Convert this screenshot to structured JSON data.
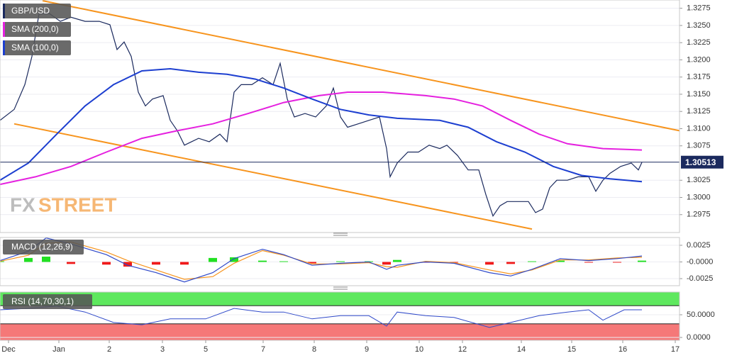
{
  "watermark": [
    "FX",
    "STREET"
  ],
  "chart_data": [
    {
      "type": "line",
      "xlim": [
        0,
        239.5
      ],
      "ylim": [
        1.2949,
        1.3287
      ],
      "yticks": [
        1.3275,
        {
          "value": 1.325,
          "label": "1.3250"
        },
        1.3225,
        {
          "value": 1.32,
          "label": "1.3200"
        },
        1.3175,
        {
          "value": 1.315,
          "label": "1.3150"
        },
        1.3125,
        {
          "value": 1.31,
          "label": "1.3100"
        },
        1.3075,
        1.3025,
        {
          "value": 1.3,
          "label": "1.3000"
        },
        1.2975
      ],
      "last_price": 1.30513,
      "series": [
        {
          "name": "GBP/USD",
          "color": "#1b2a5e",
          "x": [
            0,
            5,
            8.75,
            11.25,
            13.75,
            17.5,
            21.25,
            25,
            30,
            35,
            38.75,
            41.25,
            43.75,
            46.25,
            48.75,
            51.25,
            53.75,
            57.5,
            60,
            62.5,
            65,
            67.5,
            70,
            73.75,
            77.5,
            80,
            82.5,
            85,
            88.75,
            92.5,
            96.25,
            98.75,
            101.25,
            103.75,
            107.5,
            111.25,
            115,
            117.5,
            120,
            122.5,
            126.25,
            130,
            133.75,
            136.25,
            137.5,
            140,
            143.75,
            147.5,
            151.25,
            155,
            157.5,
            161.25,
            165,
            168.75,
            171.25,
            173.75,
            176.25,
            178.75,
            182.5,
            186.25,
            188.75,
            191.25,
            193.75,
            196.25,
            200,
            203.75,
            207.5,
            210,
            212.5,
            215,
            218.75,
            222.5,
            225,
            226.25
          ],
          "values": [
            1.3112,
            1.3128,
            1.3164,
            1.3205,
            1.3267,
            1.3267,
            1.3256,
            1.3262,
            1.3256,
            1.3256,
            1.3251,
            1.3215,
            1.3226,
            1.3205,
            1.3153,
            1.3133,
            1.3143,
            1.3148,
            1.3112,
            1.3097,
            1.3076,
            1.3081,
            1.3086,
            1.3081,
            1.3092,
            1.3081,
            1.3153,
            1.3164,
            1.3164,
            1.3174,
            1.3164,
            1.3195,
            1.3143,
            1.3117,
            1.3122,
            1.3117,
            1.3133,
            1.3159,
            1.3117,
            1.3102,
            1.3107,
            1.3112,
            1.3117,
            1.3071,
            1.303,
            1.305,
            1.3066,
            1.3066,
            1.3076,
            1.3071,
            1.3076,
            1.3061,
            1.304,
            1.304,
            1.3004,
            1.2973,
            1.2988,
            1.2994,
            1.2994,
            1.2994,
            1.2978,
            1.2983,
            1.3014,
            1.3025,
            1.3025,
            1.303,
            1.303,
            1.3009,
            1.3025,
            1.3035,
            1.3045,
            1.305,
            1.304,
            1.3051
          ]
        },
        {
          "name": "SMA (200,0)",
          "color": "#e520df",
          "x": [
            0,
            12.5,
            25,
            37.5,
            50,
            62.5,
            75,
            87.5,
            100,
            112.5,
            122.5,
            135,
            150,
            160,
            170,
            180,
            190,
            200,
            212.5,
            226.25
          ],
          "values": [
            1.3019,
            1.303,
            1.3045,
            1.3066,
            1.3086,
            1.3097,
            1.3107,
            1.3122,
            1.3138,
            1.3148,
            1.3153,
            1.3153,
            1.3148,
            1.3143,
            1.3133,
            1.3112,
            1.3092,
            1.3078,
            1.3071,
            1.3069
          ]
        },
        {
          "name": "SMA (100,0)",
          "color": "#1d3fd0",
          "x": [
            0,
            10,
            20,
            30,
            40,
            50,
            60,
            70,
            80,
            90,
            100,
            110,
            120,
            130,
            140,
            155,
            165,
            175,
            185,
            195,
            205,
            215,
            226.25
          ],
          "values": [
            1.3025,
            1.305,
            1.3092,
            1.3133,
            1.3164,
            1.3184,
            1.3187,
            1.3182,
            1.3179,
            1.3172,
            1.3159,
            1.3143,
            1.3128,
            1.312,
            1.3115,
            1.3112,
            1.3102,
            1.3081,
            1.3066,
            1.3045,
            1.3032,
            1.3027,
            1.3023
          ]
        }
      ],
      "lines": [
        {
          "color": "#f7941d",
          "x": [
            15,
            239.5
          ],
          "values": [
            1.3286,
            1.3097
          ]
        },
        {
          "color": "#f7941d",
          "x": [
            5,
            187.5
          ],
          "values": [
            1.3107,
            1.2954
          ]
        }
      ]
    },
    {
      "type": "macd",
      "title": "MACD (12,26,9)",
      "xlim": [
        0,
        239.5
      ],
      "ylim": [
        -0.00356,
        0.00367
      ],
      "yticks": [
        0.0025,
        {
          "value": 0,
          "label": "-0.0000"
        },
        -0.0025
      ],
      "x": [
        0,
        10,
        16.25,
        25,
        37.5,
        45,
        55,
        65,
        75,
        82.5,
        92.5,
        100,
        110,
        120,
        130,
        136.25,
        140,
        150,
        160,
        172.5,
        180,
        187.5,
        197.5,
        207.5,
        217.5,
        226.25
      ],
      "macd": {
        "color": "#2f49c9",
        "values": [
          0.0002,
          0.0016,
          0.0036,
          0.0027,
          0.0011,
          -0.0005,
          -0.0016,
          -0.003,
          -0.0016,
          0.0005,
          0.0019,
          0.0011,
          -0.0005,
          -0.0002,
          0,
          -0.0011,
          -0.0005,
          0,
          -0.0002,
          -0.0016,
          -0.0021,
          -0.0011,
          0.0005,
          0.0002,
          0.0005,
          0.0009
        ]
      },
      "signal": {
        "color": "#f7941d",
        "values": [
          0.0001,
          0.001,
          0.0028,
          0.003,
          0.0015,
          0.0002,
          -0.0012,
          -0.0026,
          -0.0022,
          -0.0002,
          0.0017,
          0.001,
          -0.0003,
          -0.0003,
          -0.0001,
          -0.0007,
          -0.0008,
          0.0001,
          -0.0001,
          -0.0012,
          -0.0018,
          -0.0012,
          0.0003,
          0.0003,
          0.0006,
          0.0007
        ]
      },
      "histogram": {
        "up_color": "#22e022",
        "down_color": "#f01a1a",
        "values": [
          0.0001,
          0.0006,
          0.0008,
          -0.0003,
          -0.0004,
          -0.0007,
          -0.0004,
          -0.0004,
          0.0006,
          0.0007,
          0.0002,
          0.0001,
          -0.0002,
          0.0001,
          0.0001,
          -0.0004,
          0.0003,
          -0.0001,
          -0.0001,
          -0.0004,
          -0.0003,
          0.0001,
          0.0002,
          -0.0001,
          -0.0001,
          0.0002
        ]
      }
    },
    {
      "type": "rsi",
      "title": "RSI (14,70,30,1)",
      "xlim": [
        0,
        239.5
      ],
      "ylim": [
        -6.25,
        100
      ],
      "yticks": [
        {
          "value": 50,
          "label": "50.0000"
        },
        {
          "value": 0,
          "label": "0.0000"
        }
      ],
      "overbought": 70,
      "overbought_color": "#5ee85e",
      "oversold": 30,
      "oversold_color": "#f57878",
      "color": "#2f49c9",
      "x": [
        0,
        10,
        20,
        30,
        40,
        50,
        60,
        72.5,
        82.5,
        92.5,
        100,
        110,
        120,
        130,
        136.25,
        140,
        150,
        160,
        172.5,
        180,
        190,
        200,
        207.5,
        212.5,
        220,
        226.25
      ],
      "values": [
        61,
        64,
        69,
        56,
        33,
        28,
        41,
        41,
        64,
        56,
        56,
        41,
        48,
        48,
        25,
        56,
        48,
        44,
        22,
        33,
        48,
        56,
        61,
        38,
        61,
        61
      ],
      "xticks": [
        {
          "value": 3,
          "label": "Dec"
        },
        {
          "value": 20.75,
          "label": "Jan"
        },
        {
          "value": 38.5,
          "label": "2"
        },
        {
          "value": 57.25,
          "label": "3"
        },
        {
          "value": 72.5,
          "label": "5"
        },
        {
          "value": 92.75,
          "label": "7"
        },
        {
          "value": 110.75,
          "label": "8"
        },
        {
          "value": 129.25,
          "label": "9"
        },
        {
          "value": 147.75,
          "label": "10"
        },
        {
          "value": 163,
          "label": "12"
        },
        {
          "value": 183.75,
          "label": "14"
        },
        {
          "value": 201.5,
          "label": "15"
        },
        {
          "value": 219.5,
          "label": "16"
        },
        {
          "value": 238,
          "label": "17"
        }
      ]
    }
  ]
}
